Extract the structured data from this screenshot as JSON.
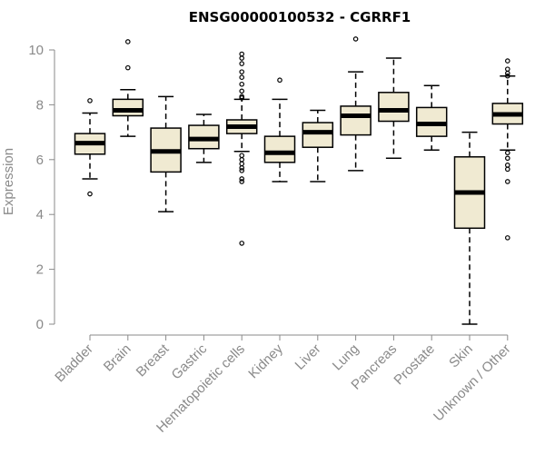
{
  "chart_data": {
    "type": "boxplot",
    "title": "ENSG00000100532 - CGRRF1",
    "xlabel": "",
    "ylabel": "Expression",
    "ylim": [
      0,
      10
    ],
    "yticks": [
      0,
      2,
      4,
      6,
      8,
      10
    ],
    "categories": [
      "Bladder",
      "Brain",
      "Breast",
      "Gastric",
      "Hematopoietic cells",
      "Kidney",
      "Liver",
      "Lung",
      "Pancreas",
      "Prostate",
      "Skin",
      "Unknown / Other"
    ],
    "boxes": [
      {
        "name": "Bladder",
        "min": 5.3,
        "q1": 6.2,
        "median": 6.6,
        "q3": 6.95,
        "max": 7.7,
        "outliers": [
          8.15,
          4.75
        ]
      },
      {
        "name": "Brain",
        "min": 6.85,
        "q1": 7.6,
        "median": 7.8,
        "q3": 8.2,
        "max": 8.55,
        "outliers": [
          10.3,
          9.35
        ]
      },
      {
        "name": "Breast",
        "min": 4.1,
        "q1": 5.55,
        "median": 6.3,
        "q3": 7.15,
        "max": 8.3,
        "outliers": []
      },
      {
        "name": "Gastric",
        "min": 5.9,
        "q1": 6.4,
        "median": 6.75,
        "q3": 7.25,
        "max": 7.65,
        "outliers": []
      },
      {
        "name": "Hematopoietic cells",
        "min": 6.3,
        "q1": 6.95,
        "median": 7.2,
        "q3": 7.45,
        "max": 8.2,
        "outliers": [
          9.85,
          9.7,
          9.5,
          9.2,
          9.0,
          8.75,
          8.5,
          8.3,
          8.25,
          6.15,
          6.0,
          5.85,
          5.7,
          5.6,
          5.3,
          5.2,
          2.95
        ]
      },
      {
        "name": "Kidney",
        "min": 5.2,
        "q1": 5.9,
        "median": 6.25,
        "q3": 6.85,
        "max": 8.2,
        "outliers": [
          8.9
        ]
      },
      {
        "name": "Liver",
        "min": 5.2,
        "q1": 6.45,
        "median": 7.0,
        "q3": 7.35,
        "max": 7.8,
        "outliers": []
      },
      {
        "name": "Lung",
        "min": 5.6,
        "q1": 6.9,
        "median": 7.6,
        "q3": 7.95,
        "max": 9.2,
        "outliers": [
          10.4
        ]
      },
      {
        "name": "Pancreas",
        "min": 6.05,
        "q1": 7.4,
        "median": 7.8,
        "q3": 8.45,
        "max": 9.7,
        "outliers": []
      },
      {
        "name": "Prostate",
        "min": 6.35,
        "q1": 6.85,
        "median": 7.3,
        "q3": 7.9,
        "max": 8.7,
        "outliers": []
      },
      {
        "name": "Skin",
        "min": 0.0,
        "q1": 3.5,
        "median": 4.8,
        "q3": 6.1,
        "max": 7.0,
        "outliers": []
      },
      {
        "name": "Unknown / Other",
        "min": 6.35,
        "q1": 7.3,
        "median": 7.65,
        "q3": 8.05,
        "max": 9.05,
        "outliers": [
          9.6,
          9.3,
          9.15,
          9.05,
          6.25,
          6.05,
          5.8,
          5.65,
          5.2,
          3.15
        ]
      }
    ],
    "colors": {
      "box_fill": "#f0ead2",
      "axis": "#8a8a8a"
    }
  }
}
